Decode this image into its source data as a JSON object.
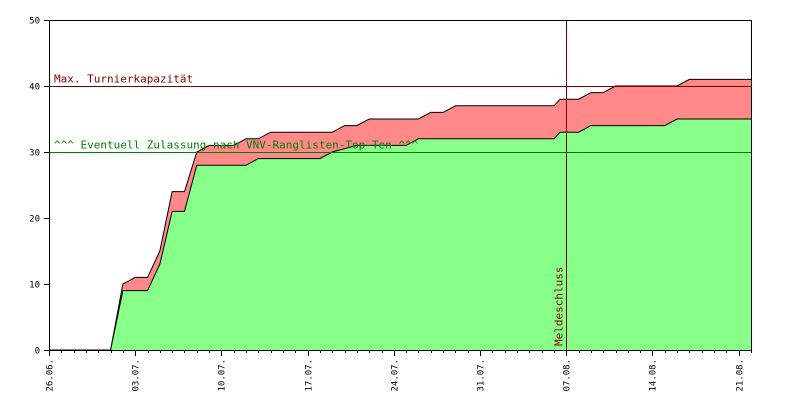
{
  "chart_data": {
    "type": "area",
    "ylim": [
      0,
      50
    ],
    "y_ticks": [
      "0",
      "10",
      "20",
      "30",
      "40",
      "50"
    ],
    "x_range": [
      0,
      57
    ],
    "x_ticks": [
      {
        "day": 0,
        "label": "26.06."
      },
      {
        "day": 7,
        "label": "03.07."
      },
      {
        "day": 14,
        "label": "10.07."
      },
      {
        "day": 21,
        "label": "17.07."
      },
      {
        "day": 28,
        "label": "24.07."
      },
      {
        "day": 35,
        "label": "31.07."
      },
      {
        "day": 42,
        "label": "07.08."
      },
      {
        "day": 49,
        "label": "14.08."
      },
      {
        "day": 56,
        "label": "21.08."
      }
    ],
    "series": [
      {
        "color": "#88ff88",
        "points": [
          [
            0,
            0
          ],
          [
            5,
            0
          ],
          [
            6,
            9
          ],
          [
            8,
            9
          ],
          [
            9,
            13
          ],
          [
            10,
            21
          ],
          [
            11,
            21
          ],
          [
            12,
            28
          ],
          [
            16,
            28
          ],
          [
            17,
            29
          ],
          [
            22,
            29
          ],
          [
            23,
            30
          ],
          [
            25,
            31
          ],
          [
            29,
            31
          ],
          [
            30,
            32
          ],
          [
            41,
            32
          ],
          [
            41.5,
            33
          ],
          [
            43,
            33
          ],
          [
            44,
            34
          ],
          [
            50,
            34
          ],
          [
            51,
            35
          ],
          [
            57,
            35
          ]
        ]
      },
      {
        "color": "#ff8888",
        "points": [
          [
            0,
            0
          ],
          [
            5,
            0
          ],
          [
            6,
            10
          ],
          [
            7,
            11
          ],
          [
            8,
            11
          ],
          [
            9,
            15
          ],
          [
            10,
            24
          ],
          [
            11,
            24
          ],
          [
            12,
            30
          ],
          [
            13,
            31
          ],
          [
            15,
            31
          ],
          [
            16,
            32
          ],
          [
            17,
            32
          ],
          [
            18,
            33
          ],
          [
            23,
            33
          ],
          [
            24,
            34
          ],
          [
            25,
            34
          ],
          [
            26,
            35
          ],
          [
            30,
            35
          ],
          [
            31,
            36
          ],
          [
            32,
            36
          ],
          [
            33,
            37
          ],
          [
            41,
            37
          ],
          [
            41.5,
            38
          ],
          [
            43,
            38
          ],
          [
            44,
            39
          ],
          [
            45,
            39
          ],
          [
            46,
            40
          ],
          [
            51,
            40
          ],
          [
            52,
            41
          ],
          [
            57,
            41
          ]
        ]
      }
    ],
    "reference_lines": [
      {
        "y": 40,
        "label": "Max. Turnierkapazität",
        "color": "#800000"
      },
      {
        "y": 30,
        "label": "^^^ Eventuell Zulassung nach VNV-Ranglisten-Top-Ten ^^^",
        "color": "#008000"
      }
    ],
    "vertical_line": {
      "day": 42,
      "label": "Meldeschluss",
      "color": "#800000"
    }
  }
}
